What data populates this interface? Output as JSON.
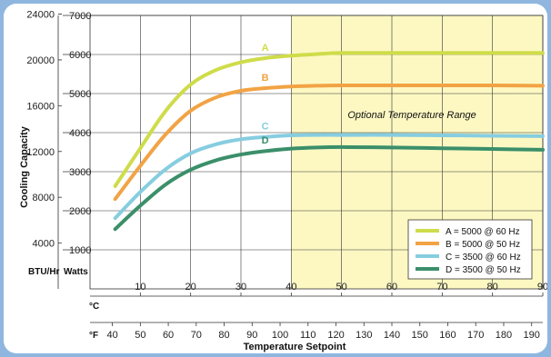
{
  "chart_data": {
    "type": "line",
    "ylabel": "Cooling Capacity",
    "xlabel": "Temperature Setpoint",
    "left_unit_label": "BTU/Hr",
    "right_unit_label": "Watts",
    "y_btu_ticks": [
      4000,
      8000,
      12000,
      16000,
      20000,
      24000
    ],
    "y_watt_ticks": [
      1000,
      2000,
      3000,
      4000,
      5000,
      6000,
      7000
    ],
    "ylim_watts": [
      0,
      7000
    ],
    "celsius_label": "°C",
    "fahrenheit_label": "°F",
    "x_celsius_ticks": [
      10,
      20,
      30,
      40,
      50,
      60,
      70,
      80,
      90
    ],
    "x_fahrenheit_ticks": [
      40,
      50,
      60,
      70,
      80,
      90,
      100,
      110,
      120,
      130,
      140,
      150,
      160,
      170,
      180,
      190
    ],
    "xlim_celsius": [
      0,
      90
    ],
    "grid": true,
    "optional_range": {
      "label": "Optional Temperature Range",
      "from_celsius": 40,
      "to_celsius": 90,
      "color": "#fdf8c2"
    },
    "legend_position": "bottom-right",
    "series": [
      {
        "name": "A = 5000 @ 60 Hz",
        "tag": "A",
        "color": "#cfdc4a",
        "x": [
          5,
          10,
          15,
          20,
          25,
          30,
          35,
          40,
          45,
          50,
          60,
          70,
          80,
          90
        ],
        "y": [
          2630,
          3600,
          4550,
          5230,
          5600,
          5800,
          5910,
          5970,
          6010,
          6040,
          6040,
          6040,
          6040,
          6040
        ]
      },
      {
        "name": "B = 5000 @ 50 Hz",
        "tag": "B",
        "color": "#f2a344",
        "x": [
          5,
          10,
          15,
          20,
          25,
          30,
          35,
          40,
          45,
          50,
          60,
          70,
          80,
          90
        ],
        "y": [
          2300,
          3150,
          3950,
          4560,
          4900,
          5070,
          5140,
          5180,
          5200,
          5210,
          5210,
          5210,
          5210,
          5200
        ]
      },
      {
        "name": "C = 3500 @ 60 Hz",
        "tag": "C",
        "color": "#86cde0",
        "x": [
          5,
          10,
          15,
          20,
          25,
          30,
          35,
          40,
          45,
          50,
          60,
          70,
          80,
          90
        ],
        "y": [
          1810,
          2480,
          3060,
          3470,
          3700,
          3830,
          3890,
          3930,
          3940,
          3940,
          3940,
          3930,
          3920,
          3910
        ]
      },
      {
        "name": "D = 3500 @ 50 Hz",
        "tag": "D",
        "color": "#3b8f6a",
        "x": [
          5,
          10,
          15,
          20,
          25,
          30,
          35,
          40,
          45,
          50,
          60,
          70,
          80,
          90
        ],
        "y": [
          1530,
          2130,
          2670,
          3050,
          3290,
          3440,
          3530,
          3590,
          3620,
          3630,
          3620,
          3600,
          3580,
          3560
        ]
      }
    ]
  }
}
